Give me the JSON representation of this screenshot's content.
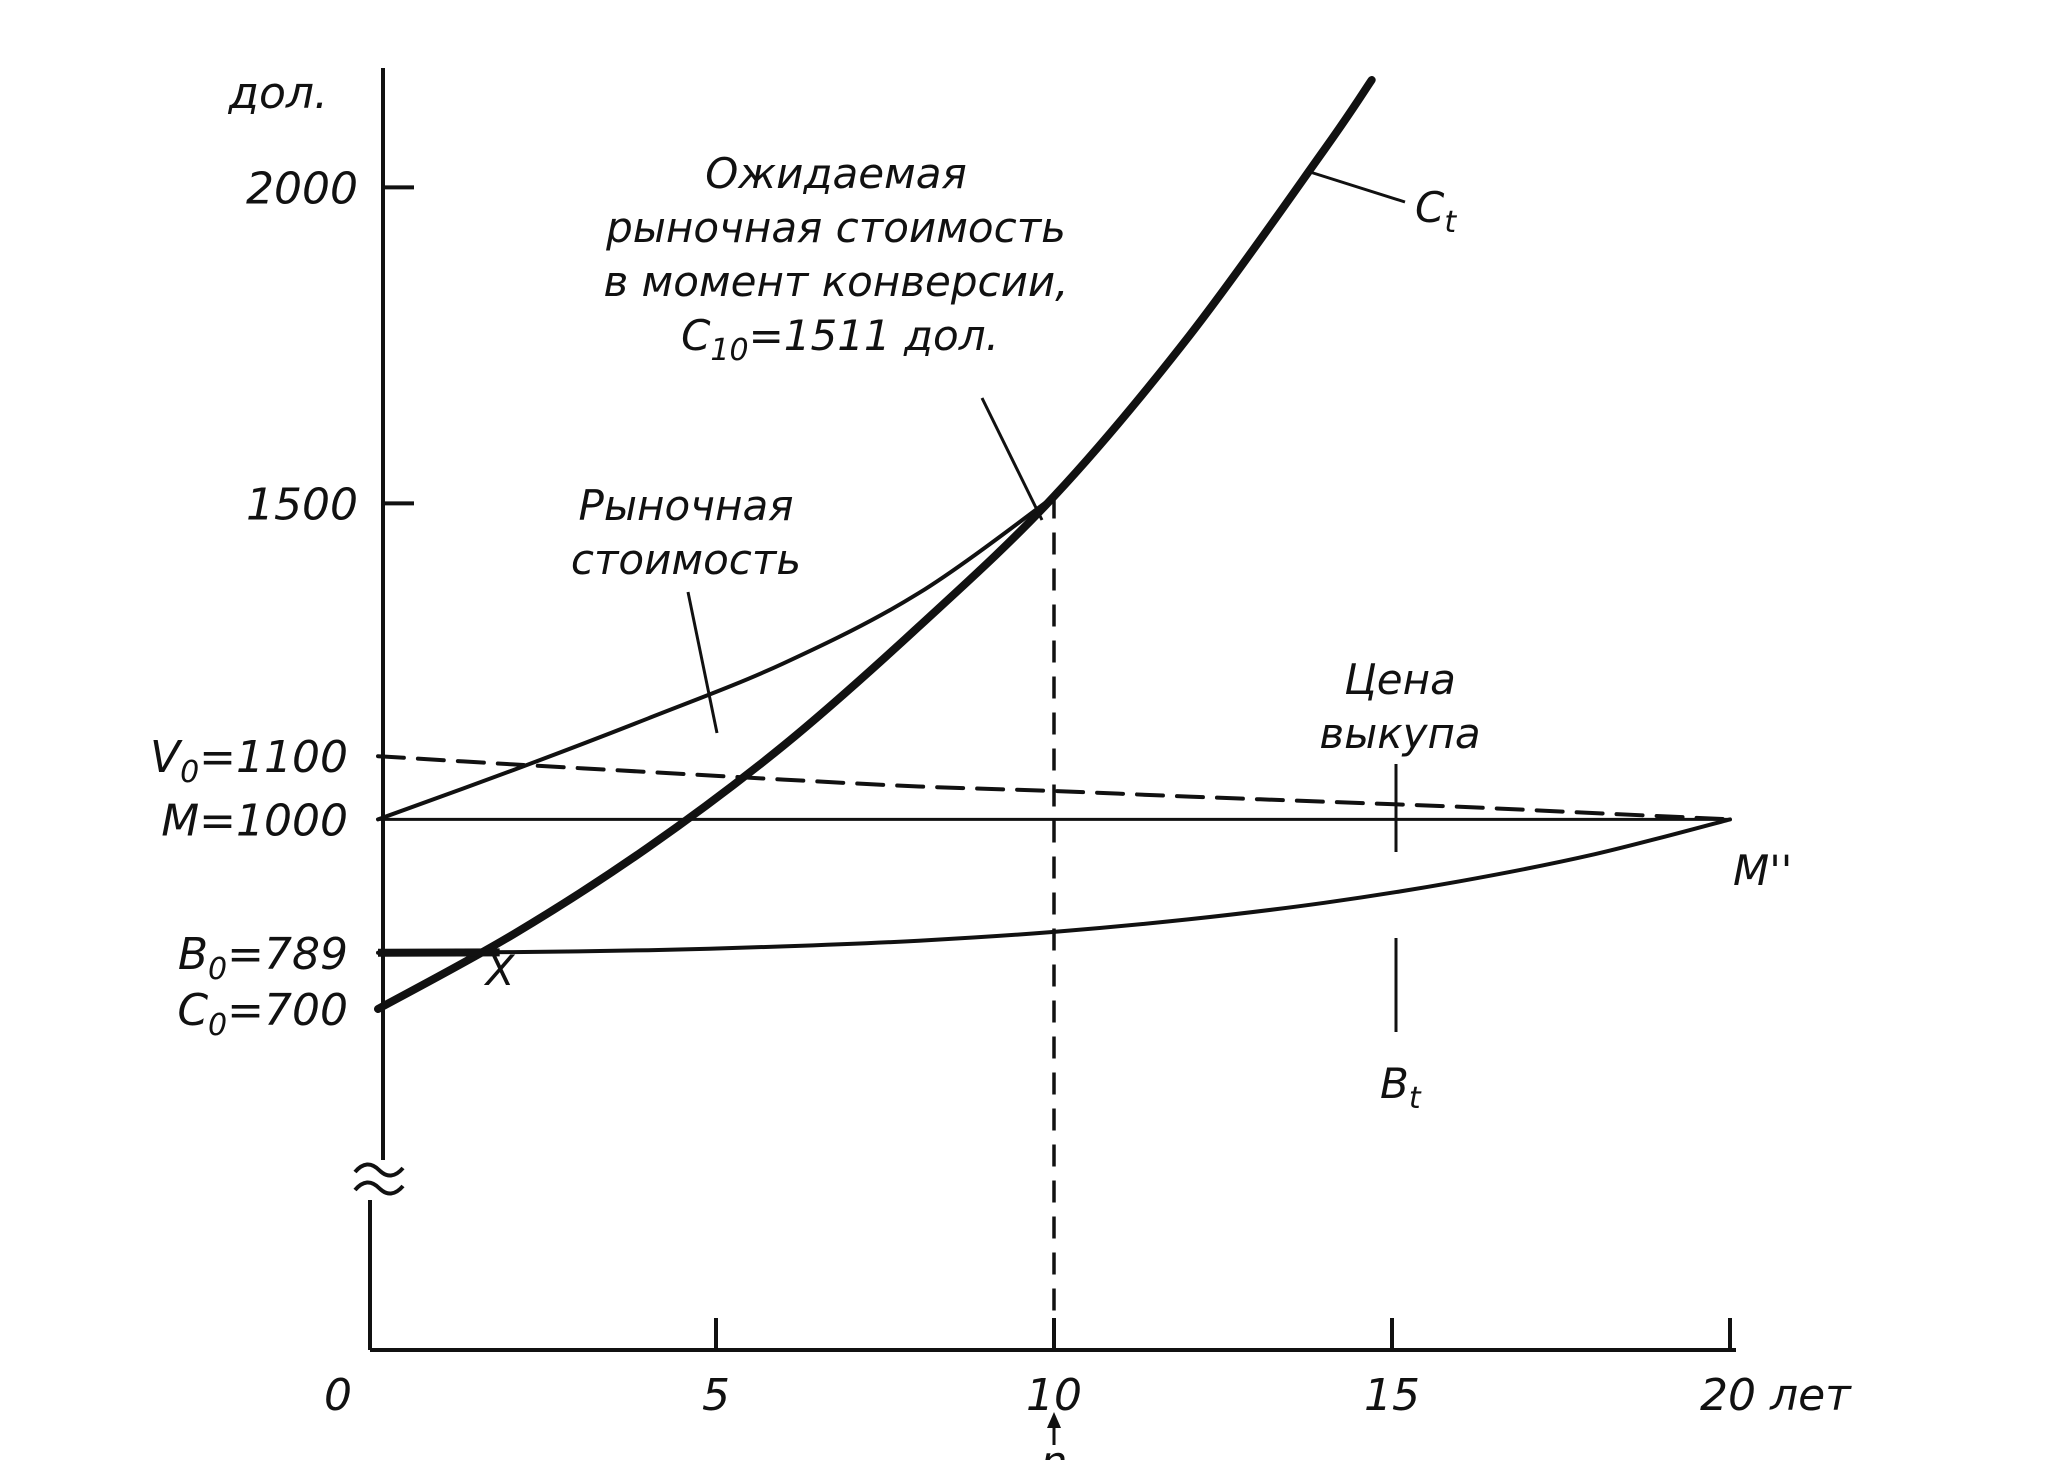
{
  "chart_data": {
    "type": "line",
    "xlabel": "",
    "ylabel": "дол.",
    "x_unit": "лет",
    "xlim": [
      0,
      20
    ],
    "ylim": [
      0,
      2400
    ],
    "x_ticks": [
      {
        "value": 0,
        "label": "0"
      },
      {
        "value": 5,
        "label": "5"
      },
      {
        "value": 10,
        "label": "10"
      },
      {
        "value": 15,
        "label": "15"
      },
      {
        "value": 20,
        "label": "20 лет"
      }
    ],
    "y_ticks": [
      {
        "value": 1500,
        "label": "1500"
      },
      {
        "value": 2000,
        "label": "2000"
      }
    ],
    "y_marks": [
      {
        "value": 1100,
        "label_main": "V",
        "label_sub": "0",
        "label_rest": "=1100"
      },
      {
        "value": 1000,
        "label_main": "M=1000",
        "label_sub": "",
        "label_rest": ""
      },
      {
        "value": 789,
        "label_main": "B",
        "label_sub": "0",
        "label_rest": "=789"
      },
      {
        "value": 700,
        "label_main": "C",
        "label_sub": "0",
        "label_rest": "=700"
      }
    ],
    "series": [
      {
        "name": "C_t",
        "x": [
          0,
          2,
          4,
          6,
          8,
          10,
          12,
          14,
          14.7
        ],
        "y": [
          700,
          818,
          956,
          1117,
          1305,
          1511,
          1765,
          2060,
          2170
        ]
      },
      {
        "name": "B_t",
        "x": [
          0,
          2,
          4,
          6,
          8,
          10,
          12,
          14,
          16,
          18,
          20
        ],
        "y": [
          789,
          790,
          793,
          799,
          808,
          822,
          842,
          868,
          902,
          945,
          1000
        ]
      },
      {
        "name": "Рыночная стоимость",
        "x": [
          0,
          2,
          4,
          6,
          8,
          10
        ],
        "y": [
          1000,
          1078,
          1160,
          1247,
          1358,
          1511
        ]
      },
      {
        "name": "Цена выкупа",
        "x": [
          0,
          2,
          4,
          6,
          8,
          10,
          12,
          14,
          16,
          18,
          20
        ],
        "y": [
          1100,
          1087,
          1075,
          1063,
          1052,
          1045,
          1036,
          1028,
          1020,
          1010,
          1000
        ]
      },
      {
        "name": "M",
        "x": [
          0,
          20
        ],
        "y": [
          1000,
          1000
        ]
      }
    ],
    "annotations": {
      "expected_value_lines": [
        "Ожидаемая",
        "рыночная стоимость",
        "в момент конверсии,"
      ],
      "c10_main": "C",
      "c10_sub": "10",
      "c10_rest": "=1511 дол.",
      "market_value_lines": [
        "Рыночная",
        "стоимость"
      ],
      "call_price_lines": [
        "Цена",
        "выкупа"
      ],
      "ct_main": "C",
      "ct_sub": "t",
      "bt_main": "B",
      "bt_sub": "t",
      "x_point": "X",
      "m_double_prime": "M''",
      "n_label": "n"
    }
  }
}
